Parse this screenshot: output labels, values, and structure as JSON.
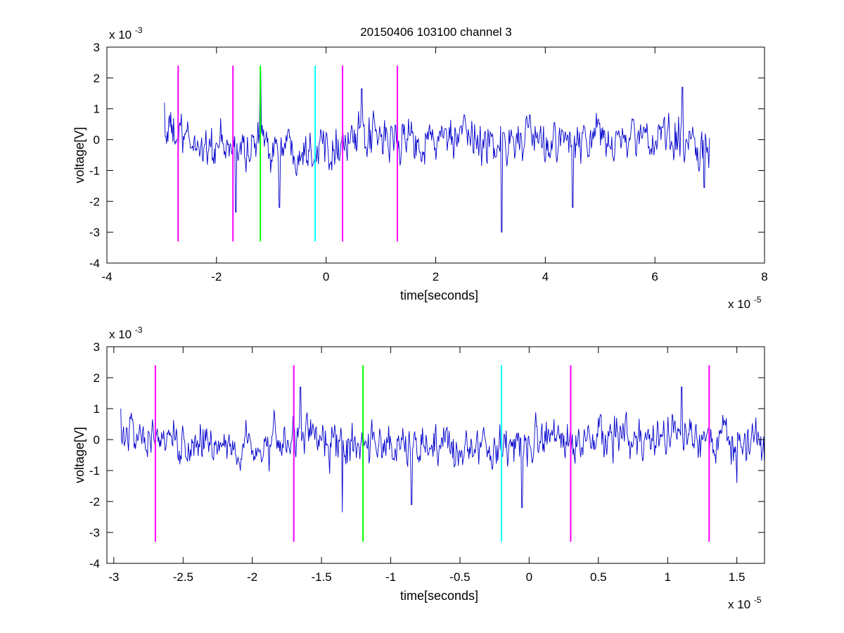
{
  "figure": {
    "title": "20150406 103100 channel 3"
  },
  "chart_data": [
    {
      "type": "line",
      "title": "20150406 103100 channel 3",
      "xlabel": "time[seconds]",
      "ylabel": "voltage[V]",
      "x_exponent_label": "x 10",
      "x_exponent": "-5",
      "y_exponent_label": "x 10",
      "y_exponent": "-3",
      "xlim": [
        -4,
        8
      ],
      "ylim": [
        -4,
        3
      ],
      "xticks": [
        -4,
        -2,
        0,
        2,
        4,
        6,
        8
      ],
      "xtick_labels": [
        "-4",
        "-2",
        "0",
        "2",
        "4",
        "6",
        "8"
      ],
      "yticks": [
        -4,
        -3,
        -2,
        -1,
        0,
        1,
        2,
        3
      ],
      "ytick_labels": [
        "-4",
        "-3",
        "-2",
        "-1",
        "0",
        "1",
        "2",
        "3"
      ],
      "grid": false,
      "trace": {
        "color": "#0000cc",
        "x_start": -2.95,
        "x_end": 7.0,
        "baseline": [
          [
            -2.95,
            0.3
          ],
          [
            -2.5,
            -0.1
          ],
          [
            -2.0,
            -0.3
          ],
          [
            -1.5,
            -0.3
          ],
          [
            -1.2,
            -0.1
          ],
          [
            -0.8,
            -0.2
          ],
          [
            -0.3,
            -0.2
          ],
          [
            0.0,
            -0.1
          ],
          [
            0.5,
            0.0
          ],
          [
            1.0,
            0.0
          ],
          [
            1.5,
            0.0
          ],
          [
            2.0,
            0.0
          ],
          [
            2.5,
            -0.05
          ],
          [
            3.0,
            -0.05
          ],
          [
            3.5,
            0.0
          ],
          [
            4.0,
            -0.1
          ],
          [
            4.5,
            -0.1
          ],
          [
            5.0,
            0.0
          ],
          [
            5.5,
            0.0
          ],
          [
            6.0,
            0.0
          ],
          [
            6.5,
            0.0
          ],
          [
            7.0,
            -0.2
          ]
        ],
        "amplitude": 0.85,
        "extremes": [
          [
            -2.95,
            1.2
          ],
          [
            -1.65,
            -2.35
          ],
          [
            -1.2,
            2.2
          ],
          [
            -0.85,
            -2.2
          ],
          [
            0.65,
            1.65
          ],
          [
            3.2,
            -3.0
          ],
          [
            4.5,
            -2.2
          ],
          [
            6.5,
            1.7
          ],
          [
            6.9,
            -1.55
          ]
        ]
      },
      "markers": [
        {
          "x": -2.7,
          "y_from": -3.3,
          "y_to": 2.4,
          "color": "#ff00ff"
        },
        {
          "x": -1.7,
          "y_from": -3.3,
          "y_to": 2.4,
          "color": "#ff00ff"
        },
        {
          "x": -1.2,
          "y_from": -3.3,
          "y_to": 2.4,
          "color": "#00ff00"
        },
        {
          "x": -0.2,
          "y_from": -3.3,
          "y_to": 2.4,
          "color": "#00ffff"
        },
        {
          "x": 0.3,
          "y_from": -3.3,
          "y_to": 2.4,
          "color": "#ff00ff"
        },
        {
          "x": 1.3,
          "y_from": -3.3,
          "y_to": 2.4,
          "color": "#ff00ff"
        }
      ]
    },
    {
      "type": "line",
      "title": "",
      "xlabel": "time[seconds]",
      "ylabel": "voltage[V]",
      "x_exponent_label": "x 10",
      "x_exponent": "-5",
      "y_exponent_label": "x 10",
      "y_exponent": "-3",
      "xlim": [
        -3.05,
        1.7
      ],
      "ylim": [
        -4,
        3
      ],
      "xticks": [
        -3,
        -2.5,
        -2,
        -1.5,
        -1,
        -0.5,
        0,
        0.5,
        1,
        1.5
      ],
      "xtick_labels": [
        "-3",
        "-2.5",
        "-2",
        "-1.5",
        "-1",
        "-0.5",
        "0",
        "0.5",
        "1",
        "1.5"
      ],
      "yticks": [
        -4,
        -3,
        -2,
        -1,
        0,
        1,
        2,
        3
      ],
      "ytick_labels": [
        "-4",
        "-3",
        "-2",
        "-1",
        "0",
        "1",
        "2",
        "3"
      ],
      "grid": false,
      "trace": {
        "color": "#0000cc",
        "x_start": -2.95,
        "x_end": 1.7,
        "baseline": [
          [
            -2.95,
            0.3
          ],
          [
            -2.8,
            0.0
          ],
          [
            -2.6,
            0.0
          ],
          [
            -2.4,
            -0.2
          ],
          [
            -2.2,
            -0.2
          ],
          [
            -2.0,
            -0.4
          ],
          [
            -1.8,
            -0.2
          ],
          [
            -1.6,
            0.0
          ],
          [
            -1.4,
            -0.3
          ],
          [
            -1.2,
            -0.1
          ],
          [
            -1.0,
            -0.3
          ],
          [
            -0.8,
            -0.2
          ],
          [
            -0.6,
            -0.2
          ],
          [
            -0.4,
            -0.2
          ],
          [
            -0.2,
            -0.2
          ],
          [
            0.0,
            -0.1
          ],
          [
            0.2,
            0.0
          ],
          [
            0.4,
            -0.1
          ],
          [
            0.6,
            0.0
          ],
          [
            0.8,
            0.0
          ],
          [
            1.0,
            0.1
          ],
          [
            1.2,
            0.0
          ],
          [
            1.4,
            0.0
          ],
          [
            1.7,
            0.0
          ]
        ],
        "amplitude": 0.8,
        "extremes": [
          [
            -2.95,
            1.0
          ],
          [
            -1.65,
            1.7
          ],
          [
            -1.35,
            2.2
          ],
          [
            -1.35,
            -2.35
          ],
          [
            -0.85,
            -2.1
          ],
          [
            -0.05,
            -2.2
          ],
          [
            1.1,
            1.7
          ],
          [
            1.5,
            -1.4
          ]
        ]
      },
      "markers": [
        {
          "x": -2.7,
          "y_from": -3.3,
          "y_to": 2.4,
          "color": "#ff00ff"
        },
        {
          "x": -1.7,
          "y_from": -3.3,
          "y_to": 2.4,
          "color": "#ff00ff"
        },
        {
          "x": -1.2,
          "y_from": -3.3,
          "y_to": 2.4,
          "color": "#00ff00"
        },
        {
          "x": -0.2,
          "y_from": -3.3,
          "y_to": 2.4,
          "color": "#00ffff"
        },
        {
          "x": 0.3,
          "y_from": -3.3,
          "y_to": 2.4,
          "color": "#ff00ff"
        },
        {
          "x": 1.3,
          "y_from": -3.3,
          "y_to": 2.4,
          "color": "#ff00ff"
        }
      ]
    }
  ]
}
